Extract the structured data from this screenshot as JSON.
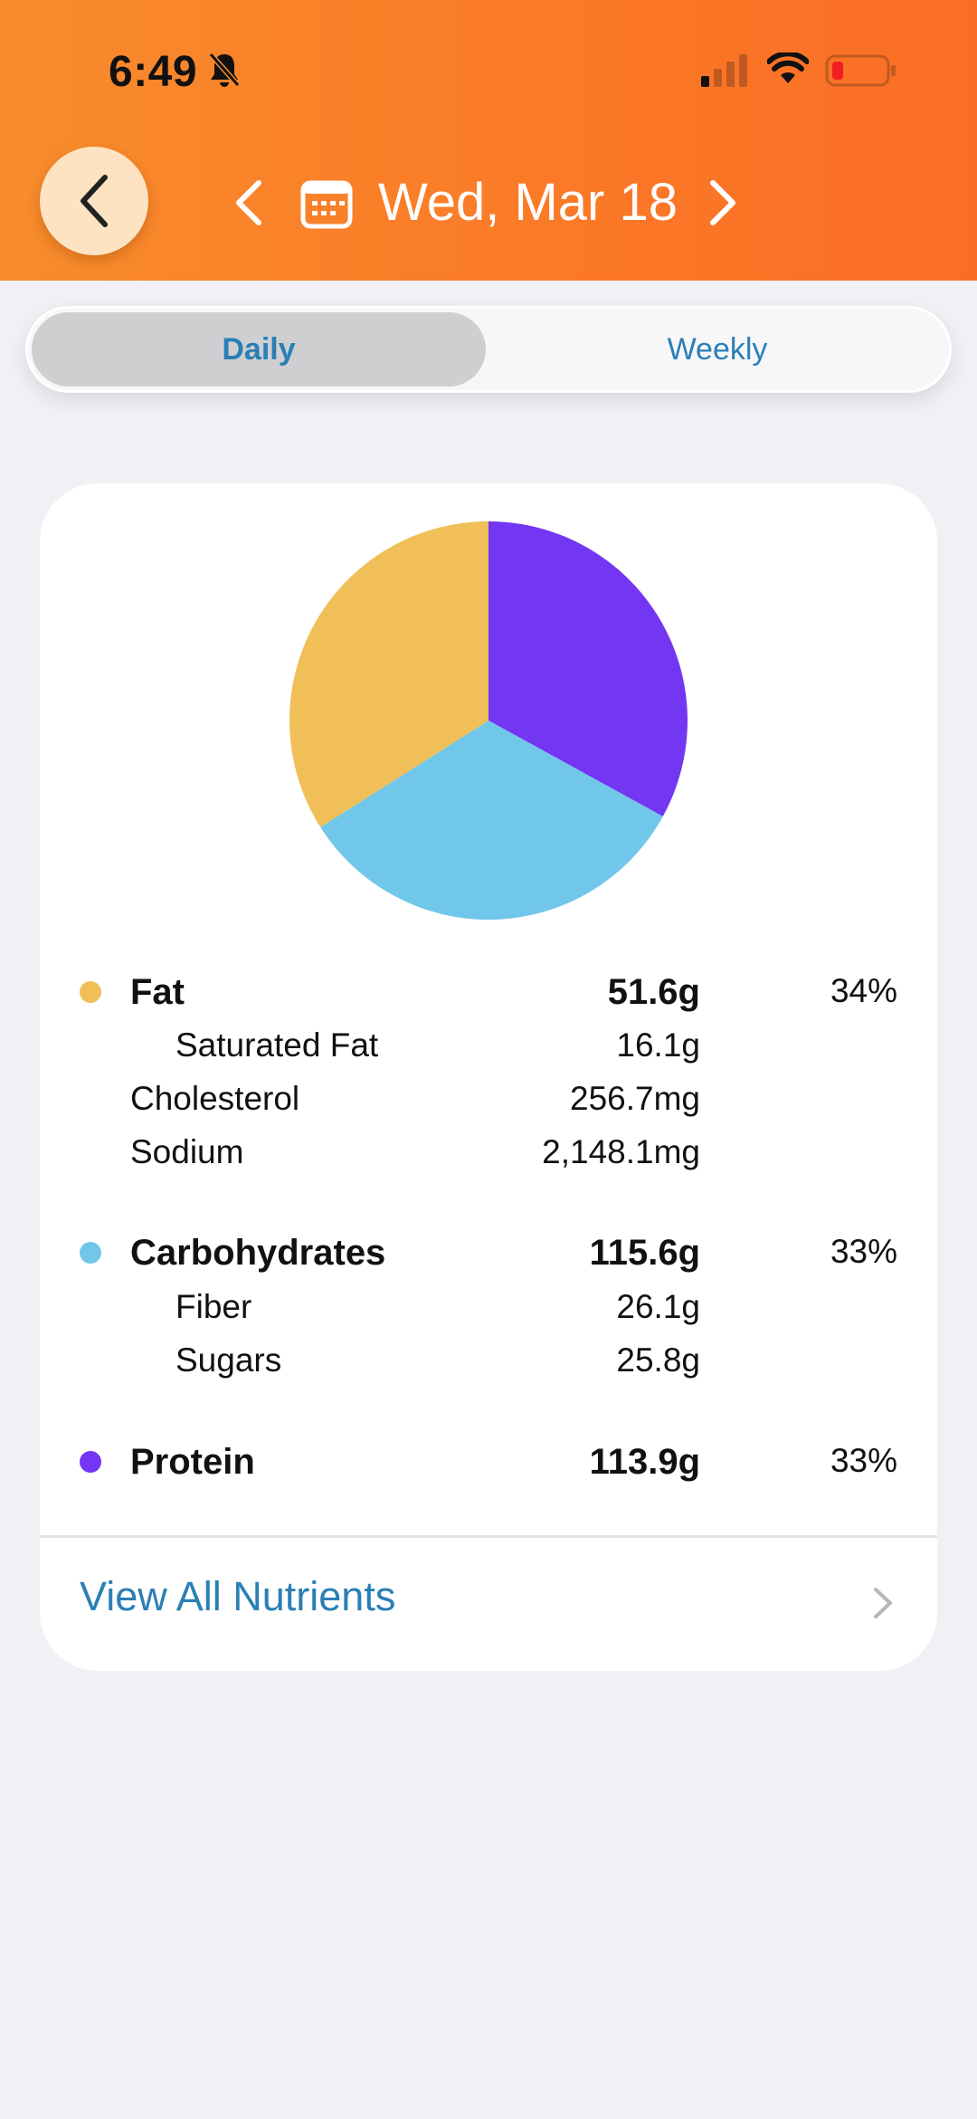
{
  "status_bar": {
    "time": "6:49",
    "icons": [
      "bell-slash-icon",
      "cellular-signal-icon",
      "wifi-icon",
      "battery-low-icon"
    ]
  },
  "header": {
    "back_icon": "chevron-left-icon",
    "prev_icon": "chevron-left-icon",
    "calendar_icon": "calendar-icon",
    "date": "Wed, Mar 18",
    "next_icon": "chevron-right-icon"
  },
  "tabs": {
    "daily": "Daily",
    "weekly": "Weekly",
    "selected": "Daily"
  },
  "colors": {
    "fat": "#f0bf57",
    "carbohydrates": "#71c7ea",
    "protein": "#7336f3",
    "accent": "#2a7fb5",
    "header": "#fa7a28"
  },
  "chart_data": {
    "type": "pie",
    "slices": [
      {
        "name": "Protein",
        "value": 33,
        "color": "#7336f3"
      },
      {
        "name": "Carbohydrates",
        "value": 33,
        "color": "#71c7ea"
      },
      {
        "name": "Fat",
        "value": 34,
        "color": "#f0bf57"
      }
    ]
  },
  "nutrients": {
    "fat": {
      "label": "Fat",
      "value": "51.6g",
      "percent": "34%"
    },
    "saturated_fat": {
      "label": "Saturated Fat",
      "value": "16.1g"
    },
    "cholesterol": {
      "label": "Cholesterol",
      "value": "256.7mg"
    },
    "sodium": {
      "label": "Sodium",
      "value": "2,148.1mg"
    },
    "carbohydrates": {
      "label": "Carbohydrates",
      "value": "115.6g",
      "percent": "33%"
    },
    "fiber": {
      "label": "Fiber",
      "value": "26.1g"
    },
    "sugars": {
      "label": "Sugars",
      "value": "25.8g"
    },
    "protein": {
      "label": "Protein",
      "value": "113.9g",
      "percent": "33%"
    }
  },
  "footer": {
    "view_all": "View All Nutrients",
    "chevron_icon": "chevron-right-icon"
  }
}
